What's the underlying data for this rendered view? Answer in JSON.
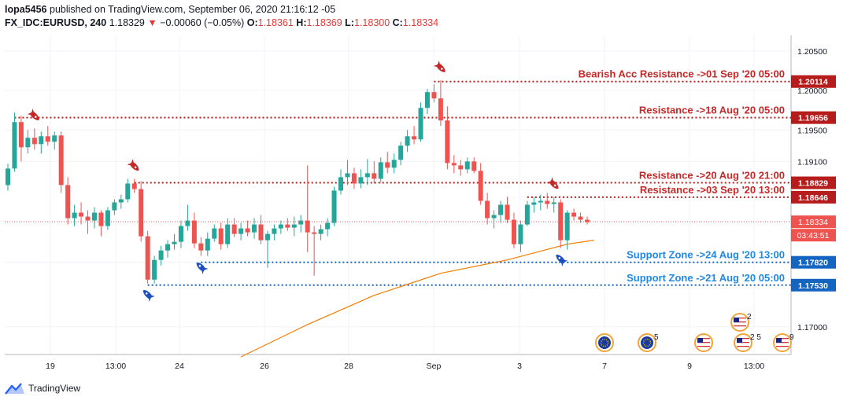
{
  "header": {
    "publisher": "lopa5456",
    "published_text": "published on TradingView.com, September 06, 2020 21:16:12 -05",
    "symbol": "FX_IDC:EURUSD, 240",
    "last_price": "1.18329",
    "change_arrow": "▼",
    "change": "−0.00060 (−0.05%)",
    "o_label": "O:",
    "o_value": "1.18361",
    "h_label": "H:",
    "h_value": "1.18369",
    "l_label": "L:",
    "l_value": "1.18300",
    "c_label": "C:",
    "c_value": "1.18334"
  },
  "footer": {
    "brand": "TradingView",
    "logo_icon": "tradingview-logo-icon"
  },
  "colors": {
    "bull": "#26a69a",
    "bear": "#ef5350",
    "resistance": "#b71c1c",
    "support": "#1565c0",
    "moving_average": "#f57c00",
    "countdown_bg": "#ef5350"
  },
  "chart_data": {
    "type": "candlestick",
    "timeframe": "240",
    "x_tick_labels": [
      "19",
      "13:00",
      "24",
      "26",
      "28",
      "Sep",
      "3",
      "7",
      "9",
      "13:00"
    ],
    "y_tick_labels": [
      "1.20500",
      "1.20000",
      "1.19500",
      "1.19100",
      "1.17820",
      "1.17000"
    ],
    "ylim": [
      1.1665,
      1.207
    ],
    "grid": true,
    "current_price": "1.18334",
    "countdown": "03:43:51",
    "candles": [
      [
        1.188,
        1.1907,
        1.1873,
        1.1901
      ],
      [
        1.1901,
        1.1972,
        1.1897,
        1.196
      ],
      [
        1.196,
        1.1968,
        1.191,
        1.1928
      ],
      [
        1.1928,
        1.195,
        1.192,
        1.194
      ],
      [
        1.194,
        1.1952,
        1.1925,
        1.1932
      ],
      [
        1.1932,
        1.1948,
        1.192,
        1.1942
      ],
      [
        1.1942,
        1.1955,
        1.193,
        1.1935
      ],
      [
        1.1935,
        1.1948,
        1.1925,
        1.1943
      ],
      [
        1.1943,
        1.1948,
        1.187,
        1.188
      ],
      [
        1.188,
        1.189,
        1.183,
        1.1838
      ],
      [
        1.1838,
        1.1855,
        1.1828,
        1.1845
      ],
      [
        1.1845,
        1.1858,
        1.183,
        1.184
      ],
      [
        1.184,
        1.1848,
        1.1818,
        1.1835
      ],
      [
        1.1835,
        1.1852,
        1.1825,
        1.1845
      ],
      [
        1.1845,
        1.1848,
        1.1815,
        1.1828
      ],
      [
        1.1828,
        1.1852,
        1.1823,
        1.1848
      ],
      [
        1.1848,
        1.1862,
        1.1842,
        1.1858
      ],
      [
        1.1858,
        1.1868,
        1.185,
        1.1862
      ],
      [
        1.1862,
        1.1888,
        1.1858,
        1.1882
      ],
      [
        1.1882,
        1.1888,
        1.187,
        1.1875
      ],
      [
        1.1875,
        1.1885,
        1.1808,
        1.1815
      ],
      [
        1.1815,
        1.1822,
        1.1755,
        1.176
      ],
      [
        1.176,
        1.179,
        1.1755,
        1.1785
      ],
      [
        1.1785,
        1.1803,
        1.1778,
        1.1797
      ],
      [
        1.1797,
        1.181,
        1.1788,
        1.1805
      ],
      [
        1.1805,
        1.1818,
        1.1798,
        1.1808
      ],
      [
        1.1808,
        1.1835,
        1.18,
        1.1828
      ],
      [
        1.1828,
        1.1855,
        1.1822,
        1.1835
      ],
      [
        1.1835,
        1.1845,
        1.18,
        1.1806
      ],
      [
        1.1806,
        1.1814,
        1.179,
        1.1797
      ],
      [
        1.1797,
        1.182,
        1.179,
        1.1812
      ],
      [
        1.1812,
        1.183,
        1.1808,
        1.1825
      ],
      [
        1.1825,
        1.1832,
        1.1798,
        1.1805
      ],
      [
        1.1805,
        1.1838,
        1.18,
        1.183
      ],
      [
        1.183,
        1.1838,
        1.1814,
        1.1818
      ],
      [
        1.1818,
        1.1832,
        1.181,
        1.1825
      ],
      [
        1.1825,
        1.1835,
        1.1815,
        1.182
      ],
      [
        1.182,
        1.1838,
        1.1812,
        1.183
      ],
      [
        1.183,
        1.1842,
        1.1805,
        1.181
      ],
      [
        1.181,
        1.1822,
        1.1775,
        1.1818
      ],
      [
        1.1818,
        1.183,
        1.181,
        1.1825
      ],
      [
        1.1825,
        1.1835,
        1.1818,
        1.183
      ],
      [
        1.183,
        1.1838,
        1.1822,
        1.1826
      ],
      [
        1.1826,
        1.184,
        1.1815,
        1.183
      ],
      [
        1.183,
        1.1842,
        1.182,
        1.1835
      ],
      [
        1.1835,
        1.1905,
        1.1795,
        1.182
      ],
      [
        1.182,
        1.1828,
        1.1765,
        1.1818
      ],
      [
        1.1818,
        1.183,
        1.181,
        1.1824
      ],
      [
        1.1824,
        1.1838,
        1.1815,
        1.1832
      ],
      [
        1.1832,
        1.1878,
        1.1828,
        1.1873
      ],
      [
        1.1873,
        1.19,
        1.1868,
        1.189
      ],
      [
        1.189,
        1.1912,
        1.188,
        1.1895
      ],
      [
        1.1895,
        1.1902,
        1.1875,
        1.1882
      ],
      [
        1.1882,
        1.19,
        1.1876,
        1.189
      ],
      [
        1.189,
        1.1913,
        1.188,
        1.1895
      ],
      [
        1.1895,
        1.191,
        1.1882,
        1.1888
      ],
      [
        1.1888,
        1.1915,
        1.1883,
        1.1909
      ],
      [
        1.1909,
        1.1922,
        1.1895,
        1.1902
      ],
      [
        1.1902,
        1.192,
        1.1895,
        1.1912
      ],
      [
        1.1912,
        1.1935,
        1.1905,
        1.193
      ],
      [
        1.193,
        1.195,
        1.1922,
        1.1942
      ],
      [
        1.1942,
        1.1955,
        1.1932,
        1.1938
      ],
      [
        1.1938,
        1.1985,
        1.1935,
        1.1978
      ],
      [
        1.1978,
        1.2002,
        1.197,
        1.1998
      ],
      [
        1.1998,
        1.2008,
        1.1985,
        1.199
      ],
      [
        1.199,
        1.2013,
        1.1955,
        1.1962
      ],
      [
        1.1962,
        1.198,
        1.19,
        1.1908
      ],
      [
        1.1908,
        1.1918,
        1.1895,
        1.1905
      ],
      [
        1.1905,
        1.1912,
        1.1892,
        1.19
      ],
      [
        1.19,
        1.1915,
        1.1895,
        1.191
      ],
      [
        1.191,
        1.1915,
        1.1895,
        1.1898
      ],
      [
        1.1898,
        1.1908,
        1.1855,
        1.186
      ],
      [
        1.186,
        1.187,
        1.183,
        1.1838
      ],
      [
        1.1838,
        1.1848,
        1.1825,
        1.1842
      ],
      [
        1.1842,
        1.186,
        1.1832,
        1.1855
      ],
      [
        1.1855,
        1.1865,
        1.1832,
        1.1836
      ],
      [
        1.1836,
        1.1845,
        1.18,
        1.1805
      ],
      [
        1.1805,
        1.1835,
        1.1795,
        1.183
      ],
      [
        1.183,
        1.186,
        1.1828,
        1.1855
      ],
      [
        1.1855,
        1.1865,
        1.1845,
        1.1858
      ],
      [
        1.1858,
        1.1868,
        1.1848,
        1.186
      ],
      [
        1.186,
        1.187,
        1.185,
        1.1856
      ],
      [
        1.1856,
        1.1865,
        1.1845,
        1.1858
      ],
      [
        1.1858,
        1.1862,
        1.18,
        1.181
      ],
      [
        1.181,
        1.1848,
        1.1798,
        1.1845
      ],
      [
        1.1845,
        1.185,
        1.1835,
        1.184
      ],
      [
        1.184,
        1.1845,
        1.1832,
        1.1836
      ],
      [
        1.1836,
        1.184,
        1.183,
        1.1833
      ]
    ],
    "moving_average": {
      "points": [
        [
          35,
          1.1662
        ],
        [
          45,
          1.1703
        ],
        [
          55,
          1.174
        ],
        [
          65,
          1.1768
        ],
        [
          75,
          1.1785
        ],
        [
          84,
          1.1805
        ],
        [
          88,
          1.181
        ]
      ]
    },
    "levels": [
      {
        "label": "Bearish Acc Resistance ->01 Sep '20 05:00",
        "price": "1.20114",
        "kind": "resistance",
        "start": 64
      },
      {
        "label": "Resistance ->18 Aug '20 05:00",
        "price": "1.19656",
        "kind": "resistance",
        "start": 1
      },
      {
        "label": "Resistance ->20 Aug '20 21:00",
        "price": "1.18829",
        "kind": "resistance",
        "start": 19
      },
      {
        "label": "Resistance ->03 Sep '20 13:00",
        "price": "1.18646",
        "kind": "resistance",
        "start": 78
      },
      {
        "label": "Support Zone ->24 Aug '20 13:00",
        "price": "1.17820",
        "kind": "support",
        "start": 29
      },
      {
        "label": "Support Zone ->21 Aug '20 05:00",
        "price": "1.17530",
        "kind": "support",
        "start": 21
      }
    ],
    "markers": [
      {
        "kind": "rocket-down-icon",
        "candle": 4
      },
      {
        "kind": "rocket-down-icon",
        "candle": 19
      },
      {
        "kind": "rocket-down-icon",
        "candle": 65
      },
      {
        "kind": "rocket-down-icon",
        "candle": 82
      },
      {
        "kind": "rocket-up-icon",
        "candle": 21
      },
      {
        "kind": "rocket-up-icon",
        "candle": 29
      },
      {
        "kind": "rocket-up-icon",
        "candle": 83
      }
    ],
    "events": [
      {
        "kind": "eu-flag-icon",
        "label": "",
        "stack": 1
      },
      {
        "kind": "eu-flag-icon",
        "label": "5",
        "stack": 1
      },
      {
        "kind": "us-flag-icon",
        "label": "",
        "stack": 1
      },
      {
        "kind": "us-flag-icon",
        "label": "2",
        "stack": 2
      },
      {
        "kind": "us-flag-icon",
        "label": "2 5",
        "stack": 1
      },
      {
        "kind": "us-flag-icon",
        "label": "9",
        "stack": 1
      }
    ]
  }
}
